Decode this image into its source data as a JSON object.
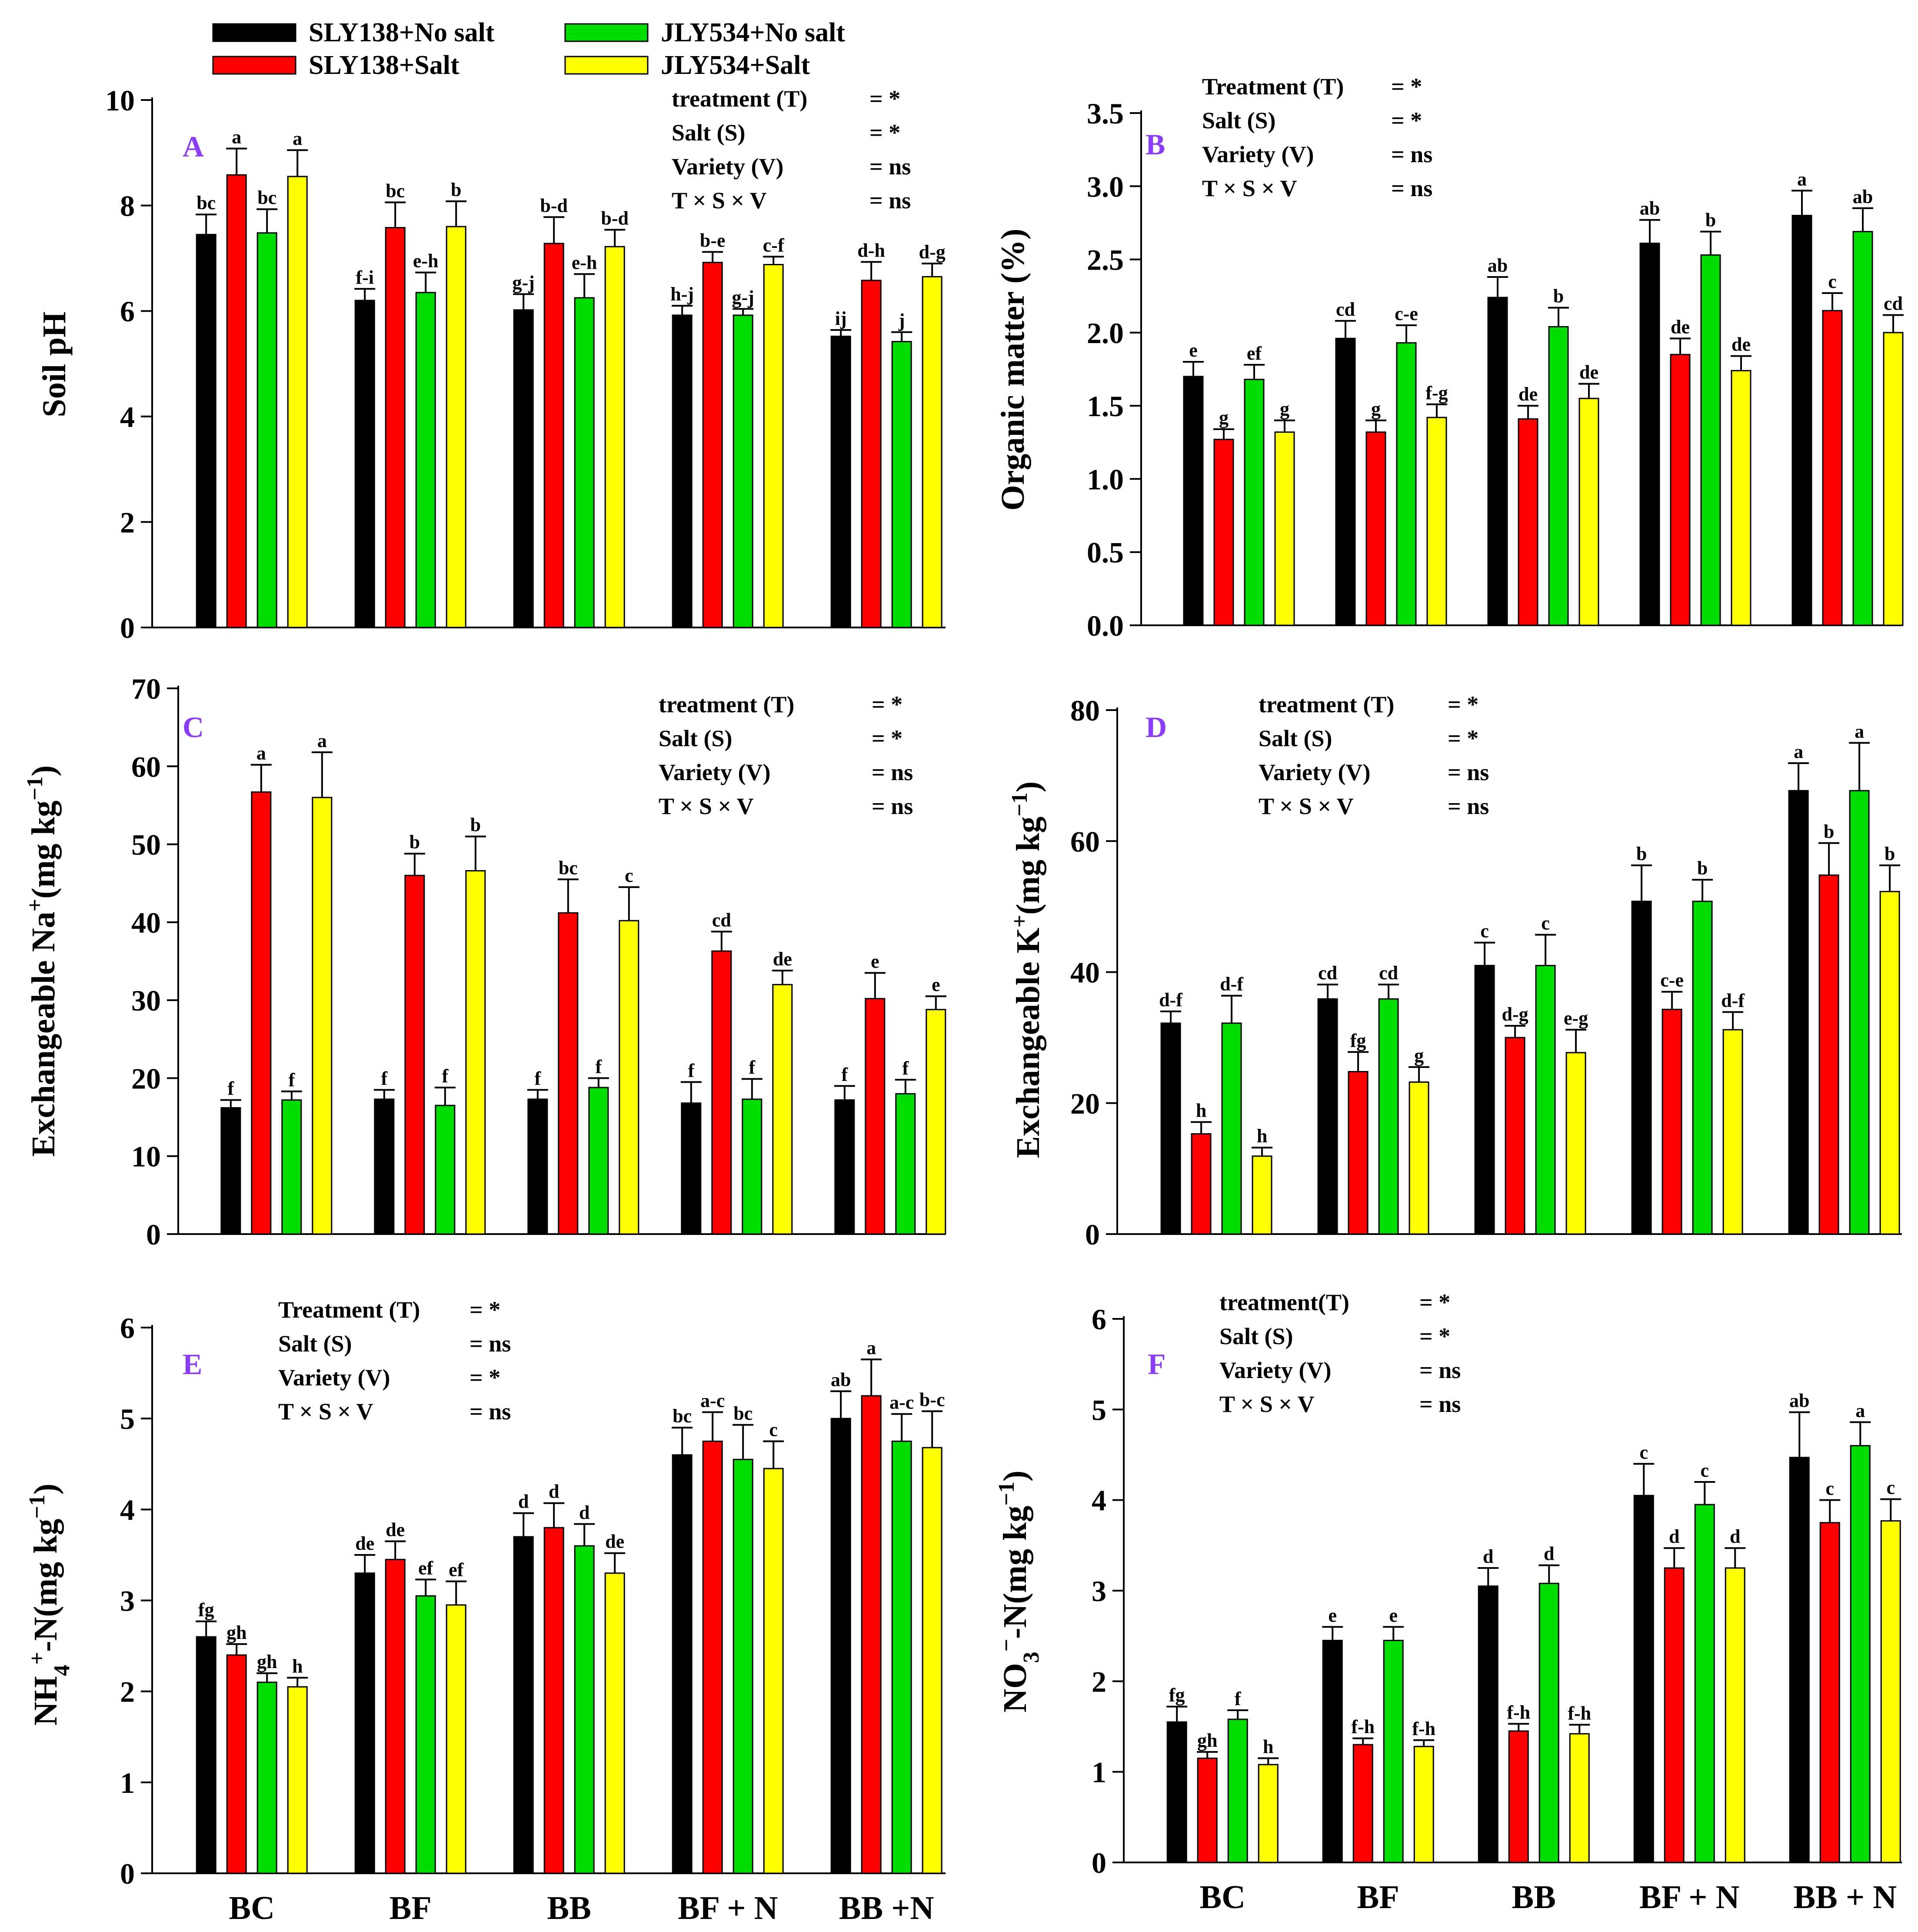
{
  "legend": [
    {
      "label": "SLY138+No salt",
      "color": "#000000"
    },
    {
      "label": "SLY138+Salt",
      "color": "#ff0000"
    },
    {
      "label": "JLY534+No salt",
      "color": "#00dd00"
    },
    {
      "label": "JLY534+Salt",
      "color": "#ffff00"
    }
  ],
  "chart_data": [
    {
      "panel": "A",
      "type": "bar",
      "ylabel": "Soil pH",
      "categories": [
        "BC",
        "BF",
        "BB",
        "BF + N",
        "BB +N"
      ],
      "ylim": [
        0,
        10
      ],
      "yticks": [
        0,
        2,
        4,
        6,
        8,
        10
      ],
      "series": [
        {
          "name": "SLY138+No salt",
          "values": [
            7.45,
            6.2,
            6.02,
            5.92,
            5.52
          ],
          "errors": [
            0.38,
            0.22,
            0.3,
            0.18,
            0.12
          ],
          "letters": [
            "bc",
            "f-i",
            "g-j",
            "h-j",
            "ij"
          ]
        },
        {
          "name": "SLY138+Salt",
          "values": [
            8.58,
            7.58,
            7.28,
            6.92,
            6.58
          ],
          "errors": [
            0.5,
            0.48,
            0.5,
            0.2,
            0.35
          ],
          "letters": [
            "a",
            "bc",
            "b-d",
            "b-e",
            "d-h"
          ]
        },
        {
          "name": "JLY534+No salt",
          "values": [
            7.48,
            6.35,
            6.25,
            5.92,
            5.42
          ],
          "errors": [
            0.45,
            0.38,
            0.45,
            0.12,
            0.18
          ],
          "letters": [
            "bc",
            "e-h",
            "e-h",
            "g-j",
            "j"
          ]
        },
        {
          "name": "JLY534+Salt",
          "values": [
            8.55,
            7.6,
            7.22,
            6.88,
            6.65
          ],
          "errors": [
            0.5,
            0.48,
            0.32,
            0.15,
            0.25
          ],
          "letters": [
            "a",
            "b",
            "b-d",
            "c-f",
            "d-g"
          ]
        }
      ],
      "stats": [
        {
          "term": "treatment (T)",
          "value": "= *"
        },
        {
          "term": "Salt (S)",
          "value": "= *"
        },
        {
          "term": "Variety (V)",
          "value": "= ns"
        },
        {
          "term": "T × S × V",
          "value": "= ns"
        }
      ]
    },
    {
      "panel": "B",
      "type": "bar",
      "ylabel": "Organic matter (%)",
      "categories": [
        "BC",
        "BF",
        "BB",
        "BF + N",
        "BB + N"
      ],
      "ylim": [
        0,
        3.5
      ],
      "yticks": [
        "0.0",
        "0.5",
        "1.0",
        "1.5",
        "2.0",
        "2.5",
        "3.0",
        "3.5"
      ],
      "series": [
        {
          "name": "SLY138+No salt",
          "values": [
            1.7,
            1.96,
            2.24,
            2.61,
            2.8
          ],
          "errors": [
            0.1,
            0.12,
            0.14,
            0.16,
            0.17
          ],
          "letters": [
            "e",
            "cd",
            "ab",
            "ab",
            "a"
          ]
        },
        {
          "name": "SLY138+Salt",
          "values": [
            1.27,
            1.32,
            1.41,
            1.85,
            2.15
          ],
          "errors": [
            0.07,
            0.08,
            0.09,
            0.11,
            0.12
          ],
          "letters": [
            "g",
            "g",
            "de",
            "de",
            "c"
          ]
        },
        {
          "name": "JLY534+No salt",
          "values": [
            1.68,
            1.93,
            2.04,
            2.53,
            2.69
          ],
          "errors": [
            0.1,
            0.12,
            0.13,
            0.16,
            0.16
          ],
          "letters": [
            "ef",
            "c-e",
            "b",
            "b",
            "ab"
          ]
        },
        {
          "name": "JLY534+Salt",
          "values": [
            1.32,
            1.42,
            1.55,
            1.74,
            2.0
          ],
          "errors": [
            0.08,
            0.09,
            0.1,
            0.1,
            0.12
          ],
          "letters": [
            "g",
            "f-g",
            "de",
            "de",
            "cd"
          ]
        }
      ],
      "stats": [
        {
          "term": "Treatment (T)",
          "value": "= *"
        },
        {
          "term": "Salt (S)",
          "value": "= *"
        },
        {
          "term": "Variety (V)",
          "value": "= ns"
        },
        {
          "term": "T × S × V",
          "value": "= ns"
        }
      ]
    },
    {
      "panel": "C",
      "type": "bar",
      "ylabel": "Exchangeable Na",
      "ylabel_sup": "+",
      "ylabel_unit": "(mg kg",
      "ylabel_unit_sup": "−1",
      "ylabel_close": ")",
      "categories": [
        "BC",
        "BF",
        "BB",
        "BF + N",
        "BB +N"
      ],
      "ylim": [
        0,
        70
      ],
      "yticks": [
        0,
        10,
        20,
        30,
        40,
        50,
        60,
        70
      ],
      "series": [
        {
          "name": "SLY138+No salt",
          "values": [
            16.2,
            17.3,
            17.3,
            16.8,
            17.2
          ],
          "errors": [
            1.0,
            1.2,
            1.2,
            2.7,
            1.8
          ],
          "letters": [
            "f",
            "f",
            "f",
            "f",
            "f"
          ]
        },
        {
          "name": "SLY138+Salt",
          "values": [
            56.7,
            46.0,
            41.2,
            36.3,
            30.2
          ],
          "errors": [
            3.5,
            2.8,
            4.3,
            2.5,
            3.3
          ],
          "letters": [
            "a",
            "b",
            "bc",
            "cd",
            "e"
          ]
        },
        {
          "name": "JLY534+No salt",
          "values": [
            17.2,
            16.5,
            18.8,
            17.3,
            18.0
          ],
          "errors": [
            1.1,
            2.3,
            1.2,
            2.6,
            1.8
          ],
          "letters": [
            "f",
            "f",
            "f",
            "f",
            "f"
          ]
        },
        {
          "name": "JLY534+Salt",
          "values": [
            56.0,
            46.6,
            40.2,
            32.0,
            28.8
          ],
          "errors": [
            5.8,
            4.4,
            4.3,
            1.8,
            1.7
          ],
          "letters": [
            "a",
            "b",
            "c",
            "de",
            "e"
          ]
        }
      ],
      "stats": [
        {
          "term": "treatment (T)",
          "value": "= *"
        },
        {
          "term": "Salt (S)",
          "value": "= *"
        },
        {
          "term": "Variety (V)",
          "value": "= ns"
        },
        {
          "term": "T × S × V",
          "value": "= ns"
        }
      ]
    },
    {
      "panel": "D",
      "type": "bar",
      "ylabel": "Exchangeable K",
      "ylabel_sup": "+",
      "ylabel_unit": "(mg kg",
      "ylabel_unit_sup": "−1",
      "ylabel_close": ")",
      "categories": [
        "BC",
        "BF",
        "BB",
        "BF + N",
        "BB + N"
      ],
      "ylim": [
        0,
        80
      ],
      "yticks": [
        0,
        20,
        40,
        60,
        80
      ],
      "series": [
        {
          "name": "SLY138+No salt",
          "values": [
            32.2,
            35.9,
            41.0,
            50.8,
            67.7
          ],
          "errors": [
            1.8,
            2.2,
            3.5,
            5.5,
            4.2
          ],
          "letters": [
            "d-f",
            "cd",
            "c",
            "b",
            "a"
          ]
        },
        {
          "name": "SLY138+Salt",
          "values": [
            15.3,
            24.8,
            30.0,
            34.3,
            54.8
          ],
          "errors": [
            1.8,
            3.0,
            1.8,
            2.7,
            4.9
          ],
          "letters": [
            "h",
            "fg",
            "d-g",
            "c-e",
            "b"
          ]
        },
        {
          "name": "JLY534+No salt",
          "values": [
            32.2,
            35.9,
            41.0,
            50.8,
            67.7
          ],
          "errors": [
            4.2,
            2.2,
            4.7,
            3.3,
            7.3
          ],
          "letters": [
            "d-f",
            "cd",
            "c",
            "b",
            "a"
          ]
        },
        {
          "name": "JLY534+Salt",
          "values": [
            11.9,
            23.2,
            27.7,
            31.2,
            52.3
          ],
          "errors": [
            1.3,
            2.3,
            3.5,
            2.7,
            4.0
          ],
          "letters": [
            "h",
            "g",
            "e-g",
            "d-f",
            "b"
          ]
        }
      ],
      "stats": [
        {
          "term": "treatment (T)",
          "value": "= *"
        },
        {
          "term": "Salt (S)",
          "value": "= *"
        },
        {
          "term": "Variety (V)",
          "value": "= ns"
        },
        {
          "term": "T × S × V",
          "value": "= ns"
        }
      ]
    },
    {
      "panel": "E",
      "type": "bar",
      "ylabel": "NH",
      "ylabel_sub": "4",
      "ylabel_sup": "+",
      "ylabel_unit": "-N(mg kg",
      "ylabel_unit_sup": "−1",
      "ylabel_close": ")",
      "categories": [
        "BC",
        "BF",
        "BB",
        "BF + N",
        "BB +N"
      ],
      "ylim": [
        0,
        6
      ],
      "yticks": [
        0,
        1,
        2,
        3,
        4,
        5,
        6
      ],
      "series": [
        {
          "name": "SLY138+No salt",
          "values": [
            2.6,
            3.3,
            3.7,
            4.6,
            5.0
          ],
          "errors": [
            0.17,
            0.2,
            0.26,
            0.3,
            0.3
          ],
          "letters": [
            "fg",
            "de",
            "d",
            "bc",
            "ab"
          ]
        },
        {
          "name": "SLY138+Salt",
          "values": [
            2.4,
            3.45,
            3.8,
            4.75,
            5.25
          ],
          "errors": [
            0.12,
            0.2,
            0.27,
            0.32,
            0.4
          ],
          "letters": [
            "gh",
            "de",
            "d",
            "a-c",
            "a"
          ]
        },
        {
          "name": "JLY534+No salt",
          "values": [
            2.1,
            3.05,
            3.6,
            4.55,
            4.75
          ],
          "errors": [
            0.1,
            0.18,
            0.24,
            0.38,
            0.3
          ],
          "letters": [
            "gh",
            "ef",
            "d",
            "bc",
            "a-c"
          ]
        },
        {
          "name": "JLY534+Salt",
          "values": [
            2.05,
            2.95,
            3.3,
            4.45,
            4.68
          ],
          "errors": [
            0.1,
            0.26,
            0.22,
            0.3,
            0.4
          ],
          "letters": [
            "h",
            "ef",
            "de",
            "c",
            "b-c"
          ]
        }
      ],
      "stats": [
        {
          "term": "Treatment (T)",
          "value": "= *"
        },
        {
          "term": "Salt (S)",
          "value": "= ns"
        },
        {
          "term": "Variety (V)",
          "value": "= *"
        },
        {
          "term": "T × S × V",
          "value": "= ns"
        }
      ]
    },
    {
      "panel": "F",
      "type": "bar",
      "ylabel": "NO",
      "ylabel_sub": "3",
      "ylabel_sup": "−",
      "ylabel_unit": "-N(mg kg",
      "ylabel_unit_sup": "−1",
      "ylabel_close": ")",
      "categories": [
        "BC",
        "BF",
        "BB",
        "BF + N",
        "BB + N"
      ],
      "ylim": [
        0,
        6
      ],
      "yticks": [
        0,
        1,
        2,
        3,
        4,
        5,
        6
      ],
      "series": [
        {
          "name": "SLY138+No salt",
          "values": [
            1.55,
            2.45,
            3.05,
            4.05,
            4.47
          ],
          "errors": [
            0.17,
            0.15,
            0.2,
            0.35,
            0.5
          ],
          "letters": [
            "fg",
            "e",
            "d",
            "c",
            "ab"
          ]
        },
        {
          "name": "SLY138+Salt",
          "values": [
            1.15,
            1.3,
            1.45,
            3.25,
            3.75
          ],
          "errors": [
            0.07,
            0.07,
            0.08,
            0.22,
            0.25
          ],
          "letters": [
            "gh",
            "f-h",
            "f-h",
            "d",
            "c"
          ]
        },
        {
          "name": "JLY534+No salt",
          "values": [
            1.58,
            2.45,
            3.08,
            3.95,
            4.6
          ],
          "errors": [
            0.1,
            0.15,
            0.2,
            0.25,
            0.26
          ],
          "letters": [
            "f",
            "e",
            "d",
            "c",
            "a"
          ]
        },
        {
          "name": "JLY534+Salt",
          "values": [
            1.08,
            1.28,
            1.42,
            3.25,
            3.77
          ],
          "errors": [
            0.07,
            0.07,
            0.1,
            0.22,
            0.24
          ],
          "letters": [
            "h",
            "f-h",
            "f-h",
            "d",
            "c"
          ]
        }
      ],
      "stats": [
        {
          "term": "treatment(T)",
          "value": "= *"
        },
        {
          "term": "Salt (S)",
          "value": "= *"
        },
        {
          "term": "Variety (V)",
          "value": "= ns"
        },
        {
          "term": "T × S × V",
          "value": "= ns"
        }
      ]
    }
  ]
}
